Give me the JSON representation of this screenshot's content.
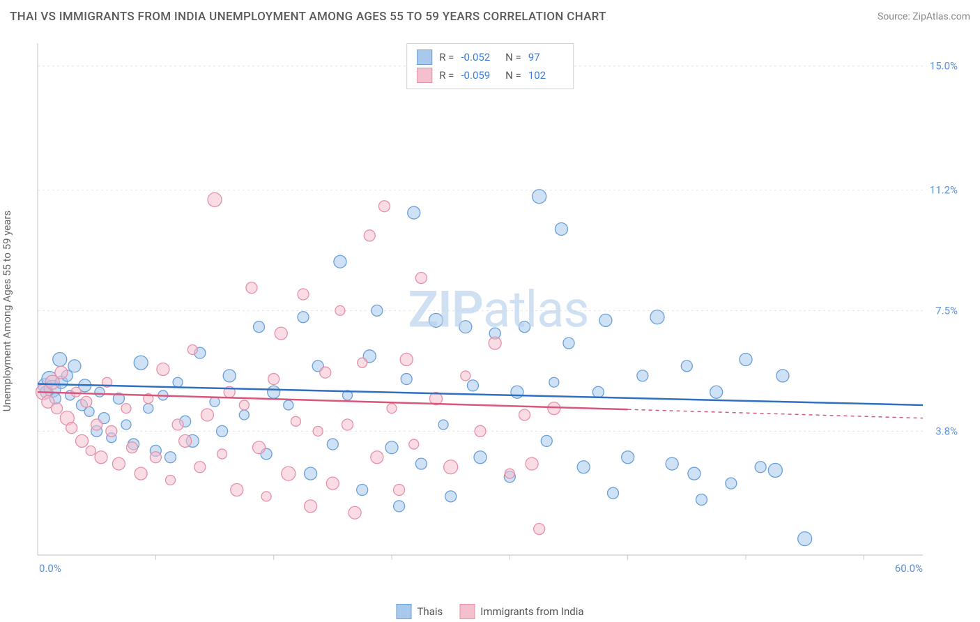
{
  "header": {
    "title": "THAI VS IMMIGRANTS FROM INDIA UNEMPLOYMENT AMONG AGES 55 TO 59 YEARS CORRELATION CHART",
    "source": "Source: ZipAtlas.com"
  },
  "chart": {
    "type": "scatter",
    "y_axis_label": "Unemployment Among Ages 55 to 59 years",
    "watermark": "ZIPatlas",
    "background_color": "#ffffff",
    "grid_color": "#e4e4e4",
    "axis_line_color": "#cccccc",
    "tick_label_color": "#5b8fd6",
    "xlim": [
      0,
      60
    ],
    "ylim": [
      0,
      15.7
    ],
    "x_ticks_visible": [
      0,
      60
    ],
    "x_tick_labels": [
      "0.0%",
      "60.0%"
    ],
    "x_minor_ticks": [
      8,
      16,
      24,
      32,
      40,
      48,
      56
    ],
    "y_grid_values": [
      3.8,
      7.5,
      11.2,
      15.0
    ],
    "y_grid_labels": [
      "3.8%",
      "7.5%",
      "11.2%",
      "15.0%"
    ],
    "series": [
      {
        "name": "Thais",
        "fill_color": "#a8c8ec",
        "stroke_color": "#6a9fd8",
        "fill_opacity": 0.55,
        "line_color": "#2f6fc2",
        "line_width": 2.5,
        "trend_y_start": 5.25,
        "trend_y_end": 4.6,
        "trend_dash_after_x": 60,
        "R": "-0.052",
        "N": "97",
        "points": [
          {
            "x": 0.5,
            "y": 5.2,
            "r": 10
          },
          {
            "x": 0.6,
            "y": 5.0,
            "r": 9
          },
          {
            "x": 0.8,
            "y": 5.4,
            "r": 11
          },
          {
            "x": 1.0,
            "y": 5.1,
            "r": 12
          },
          {
            "x": 1.2,
            "y": 4.8,
            "r": 8
          },
          {
            "x": 1.5,
            "y": 6.0,
            "r": 10
          },
          {
            "x": 1.6,
            "y": 5.3,
            "r": 9
          },
          {
            "x": 2.0,
            "y": 5.5,
            "r": 8
          },
          {
            "x": 2.2,
            "y": 4.9,
            "r": 7
          },
          {
            "x": 2.5,
            "y": 5.8,
            "r": 9
          },
          {
            "x": 3.0,
            "y": 4.6,
            "r": 8
          },
          {
            "x": 3.2,
            "y": 5.2,
            "r": 9
          },
          {
            "x": 3.5,
            "y": 4.4,
            "r": 7
          },
          {
            "x": 4.0,
            "y": 3.8,
            "r": 8
          },
          {
            "x": 4.2,
            "y": 5.0,
            "r": 7
          },
          {
            "x": 4.5,
            "y": 4.2,
            "r": 8
          },
          {
            "x": 5.0,
            "y": 3.6,
            "r": 7
          },
          {
            "x": 5.5,
            "y": 4.8,
            "r": 8
          },
          {
            "x": 6.0,
            "y": 4.0,
            "r": 7
          },
          {
            "x": 6.5,
            "y": 3.4,
            "r": 8
          },
          {
            "x": 7.0,
            "y": 5.9,
            "r": 10
          },
          {
            "x": 7.5,
            "y": 4.5,
            "r": 7
          },
          {
            "x": 8.0,
            "y": 3.2,
            "r": 8
          },
          {
            "x": 8.5,
            "y": 4.9,
            "r": 7
          },
          {
            "x": 9.0,
            "y": 3.0,
            "r": 8
          },
          {
            "x": 9.5,
            "y": 5.3,
            "r": 7
          },
          {
            "x": 10.0,
            "y": 4.1,
            "r": 8
          },
          {
            "x": 10.5,
            "y": 3.5,
            "r": 9
          },
          {
            "x": 11.0,
            "y": 6.2,
            "r": 8
          },
          {
            "x": 12.0,
            "y": 4.7,
            "r": 7
          },
          {
            "x": 12.5,
            "y": 3.8,
            "r": 8
          },
          {
            "x": 13.0,
            "y": 5.5,
            "r": 9
          },
          {
            "x": 14.0,
            "y": 4.3,
            "r": 7
          },
          {
            "x": 15.0,
            "y": 7.0,
            "r": 8
          },
          {
            "x": 15.5,
            "y": 3.1,
            "r": 8
          },
          {
            "x": 16.0,
            "y": 5.0,
            "r": 9
          },
          {
            "x": 17.0,
            "y": 4.6,
            "r": 7
          },
          {
            "x": 18.0,
            "y": 7.3,
            "r": 8
          },
          {
            "x": 18.5,
            "y": 2.5,
            "r": 9
          },
          {
            "x": 19.0,
            "y": 5.8,
            "r": 8
          },
          {
            "x": 20.0,
            "y": 3.4,
            "r": 8
          },
          {
            "x": 20.5,
            "y": 9.0,
            "r": 9
          },
          {
            "x": 21.0,
            "y": 4.9,
            "r": 7
          },
          {
            "x": 22.0,
            "y": 2.0,
            "r": 8
          },
          {
            "x": 22.5,
            "y": 6.1,
            "r": 9
          },
          {
            "x": 23.0,
            "y": 7.5,
            "r": 8
          },
          {
            "x": 24.0,
            "y": 3.3,
            "r": 9
          },
          {
            "x": 24.5,
            "y": 1.5,
            "r": 8
          },
          {
            "x": 25.0,
            "y": 5.4,
            "r": 8
          },
          {
            "x": 25.5,
            "y": 10.5,
            "r": 9
          },
          {
            "x": 26.0,
            "y": 2.8,
            "r": 8
          },
          {
            "x": 27.0,
            "y": 7.2,
            "r": 10
          },
          {
            "x": 27.5,
            "y": 4.0,
            "r": 7
          },
          {
            "x": 28.0,
            "y": 1.8,
            "r": 8
          },
          {
            "x": 29.0,
            "y": 7.0,
            "r": 9
          },
          {
            "x": 29.5,
            "y": 5.2,
            "r": 8
          },
          {
            "x": 30.0,
            "y": 3.0,
            "r": 9
          },
          {
            "x": 31.0,
            "y": 6.8,
            "r": 8
          },
          {
            "x": 32.0,
            "y": 2.4,
            "r": 8
          },
          {
            "x": 32.5,
            "y": 5.0,
            "r": 9
          },
          {
            "x": 33.0,
            "y": 7.0,
            "r": 8
          },
          {
            "x": 34.0,
            "y": 11.0,
            "r": 10
          },
          {
            "x": 34.5,
            "y": 3.5,
            "r": 8
          },
          {
            "x": 35.0,
            "y": 5.3,
            "r": 7
          },
          {
            "x": 35.5,
            "y": 10.0,
            "r": 9
          },
          {
            "x": 36.0,
            "y": 6.5,
            "r": 8
          },
          {
            "x": 37.0,
            "y": 2.7,
            "r": 9
          },
          {
            "x": 38.0,
            "y": 5.0,
            "r": 8
          },
          {
            "x": 38.5,
            "y": 7.2,
            "r": 9
          },
          {
            "x": 39.0,
            "y": 1.9,
            "r": 8
          },
          {
            "x": 40.0,
            "y": 3.0,
            "r": 9
          },
          {
            "x": 41.0,
            "y": 5.5,
            "r": 8
          },
          {
            "x": 42.0,
            "y": 7.3,
            "r": 10
          },
          {
            "x": 43.0,
            "y": 2.8,
            "r": 9
          },
          {
            "x": 44.0,
            "y": 5.8,
            "r": 8
          },
          {
            "x": 44.5,
            "y": 2.5,
            "r": 9
          },
          {
            "x": 45.0,
            "y": 1.7,
            "r": 8
          },
          {
            "x": 46.0,
            "y": 5.0,
            "r": 9
          },
          {
            "x": 47.0,
            "y": 2.2,
            "r": 8
          },
          {
            "x": 48.0,
            "y": 6.0,
            "r": 9
          },
          {
            "x": 49.0,
            "y": 2.7,
            "r": 8
          },
          {
            "x": 50.0,
            "y": 2.6,
            "r": 10
          },
          {
            "x": 50.5,
            "y": 5.5,
            "r": 9
          },
          {
            "x": 52.0,
            "y": 0.5,
            "r": 10
          }
        ]
      },
      {
        "name": "Immigrants from India",
        "fill_color": "#f5c0cd",
        "stroke_color": "#e590a8",
        "fill_opacity": 0.55,
        "line_color": "#d8567a",
        "line_width": 2.5,
        "trend_y_start": 5.0,
        "trend_y_end": 4.2,
        "trend_dash_after_x": 40,
        "R": "-0.059",
        "N": "102",
        "points": [
          {
            "x": 0.4,
            "y": 5.0,
            "r": 11
          },
          {
            "x": 0.7,
            "y": 4.7,
            "r": 9
          },
          {
            "x": 1.0,
            "y": 5.3,
            "r": 10
          },
          {
            "x": 1.3,
            "y": 4.5,
            "r": 8
          },
          {
            "x": 1.6,
            "y": 5.6,
            "r": 9
          },
          {
            "x": 2.0,
            "y": 4.2,
            "r": 10
          },
          {
            "x": 2.3,
            "y": 3.9,
            "r": 8
          },
          {
            "x": 2.6,
            "y": 5.0,
            "r": 7
          },
          {
            "x": 3.0,
            "y": 3.5,
            "r": 9
          },
          {
            "x": 3.3,
            "y": 4.7,
            "r": 8
          },
          {
            "x": 3.6,
            "y": 3.2,
            "r": 7
          },
          {
            "x": 4.0,
            "y": 4.0,
            "r": 8
          },
          {
            "x": 4.3,
            "y": 3.0,
            "r": 9
          },
          {
            "x": 4.7,
            "y": 5.3,
            "r": 7
          },
          {
            "x": 5.0,
            "y": 3.8,
            "r": 8
          },
          {
            "x": 5.5,
            "y": 2.8,
            "r": 9
          },
          {
            "x": 6.0,
            "y": 4.5,
            "r": 7
          },
          {
            "x": 6.4,
            "y": 3.3,
            "r": 8
          },
          {
            "x": 7.0,
            "y": 2.5,
            "r": 9
          },
          {
            "x": 7.5,
            "y": 4.8,
            "r": 7
          },
          {
            "x": 8.0,
            "y": 3.0,
            "r": 8
          },
          {
            "x": 8.5,
            "y": 5.7,
            "r": 9
          },
          {
            "x": 9.0,
            "y": 2.3,
            "r": 7
          },
          {
            "x": 9.5,
            "y": 4.0,
            "r": 8
          },
          {
            "x": 10.0,
            "y": 3.5,
            "r": 9
          },
          {
            "x": 10.5,
            "y": 6.3,
            "r": 7
          },
          {
            "x": 11.0,
            "y": 2.7,
            "r": 8
          },
          {
            "x": 11.5,
            "y": 4.3,
            "r": 9
          },
          {
            "x": 12.0,
            "y": 10.9,
            "r": 10
          },
          {
            "x": 12.5,
            "y": 3.1,
            "r": 7
          },
          {
            "x": 13.0,
            "y": 5.0,
            "r": 8
          },
          {
            "x": 13.5,
            "y": 2.0,
            "r": 9
          },
          {
            "x": 14.0,
            "y": 4.6,
            "r": 7
          },
          {
            "x": 14.5,
            "y": 8.2,
            "r": 8
          },
          {
            "x": 15.0,
            "y": 3.3,
            "r": 9
          },
          {
            "x": 15.5,
            "y": 1.8,
            "r": 7
          },
          {
            "x": 16.0,
            "y": 5.4,
            "r": 8
          },
          {
            "x": 16.5,
            "y": 6.8,
            "r": 9
          },
          {
            "x": 17.0,
            "y": 2.5,
            "r": 10
          },
          {
            "x": 17.5,
            "y": 4.1,
            "r": 7
          },
          {
            "x": 18.0,
            "y": 8.0,
            "r": 8
          },
          {
            "x": 18.5,
            "y": 1.5,
            "r": 9
          },
          {
            "x": 19.0,
            "y": 3.8,
            "r": 7
          },
          {
            "x": 19.5,
            "y": 5.6,
            "r": 8
          },
          {
            "x": 20.0,
            "y": 2.2,
            "r": 9
          },
          {
            "x": 20.5,
            "y": 7.5,
            "r": 7
          },
          {
            "x": 21.0,
            "y": 4.0,
            "r": 8
          },
          {
            "x": 21.5,
            "y": 1.3,
            "r": 9
          },
          {
            "x": 22.0,
            "y": 5.9,
            "r": 7
          },
          {
            "x": 22.5,
            "y": 9.8,
            "r": 8
          },
          {
            "x": 23.0,
            "y": 3.0,
            "r": 9
          },
          {
            "x": 23.5,
            "y": 10.7,
            "r": 8
          },
          {
            "x": 24.0,
            "y": 4.5,
            "r": 7
          },
          {
            "x": 24.5,
            "y": 2.0,
            "r": 8
          },
          {
            "x": 25.0,
            "y": 6.0,
            "r": 9
          },
          {
            "x": 25.5,
            "y": 3.4,
            "r": 7
          },
          {
            "x": 26.0,
            "y": 8.5,
            "r": 8
          },
          {
            "x": 27.0,
            "y": 4.8,
            "r": 9
          },
          {
            "x": 28.0,
            "y": 2.7,
            "r": 10
          },
          {
            "x": 29.0,
            "y": 5.5,
            "r": 7
          },
          {
            "x": 30.0,
            "y": 3.8,
            "r": 8
          },
          {
            "x": 31.0,
            "y": 6.5,
            "r": 9
          },
          {
            "x": 32.0,
            "y": 2.5,
            "r": 7
          },
          {
            "x": 33.0,
            "y": 4.3,
            "r": 8
          },
          {
            "x": 33.5,
            "y": 2.8,
            "r": 9
          },
          {
            "x": 34.0,
            "y": 0.8,
            "r": 8
          },
          {
            "x": 35.0,
            "y": 4.5,
            "r": 9
          }
        ]
      }
    ]
  },
  "bottom_legend": {
    "items": [
      {
        "label": "Thais",
        "fill": "#a8c8ec",
        "stroke": "#6a9fd8"
      },
      {
        "label": "Immigrants from India",
        "fill": "#f5c0cd",
        "stroke": "#e590a8"
      }
    ]
  }
}
